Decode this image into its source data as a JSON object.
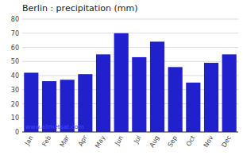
{
  "chart_data": {
    "type": "bar",
    "title": "Berlin : precipitation (mm)",
    "categories": [
      "Jan",
      "Feb",
      "Mar",
      "Apr",
      "May",
      "Jun",
      "Jul",
      "Aug",
      "Sep",
      "Oct",
      "Nov",
      "Dec"
    ],
    "values": [
      42,
      36,
      37,
      41,
      55,
      70,
      53,
      64,
      46,
      35,
      49,
      55
    ],
    "color": "#2020cc",
    "ylim": [
      0,
      80
    ],
    "yticks": [
      0,
      10,
      20,
      30,
      40,
      50,
      60,
      70,
      80
    ],
    "grid": true,
    "annotations": [
      "www.allmetsat.com"
    ]
  }
}
